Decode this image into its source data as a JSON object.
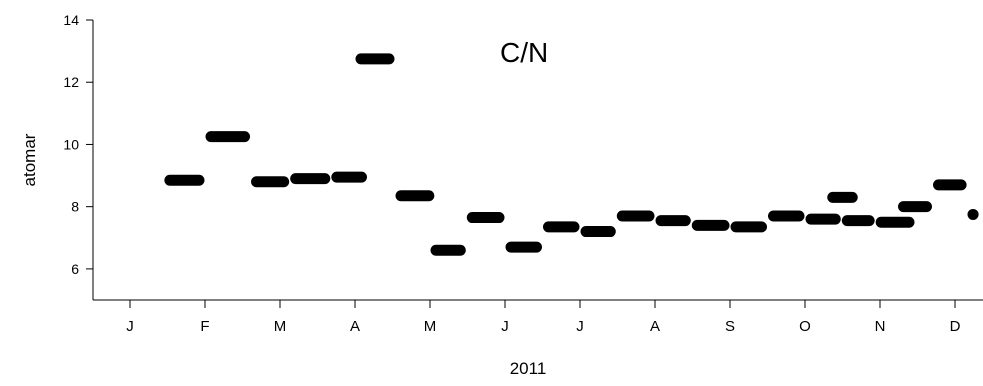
{
  "chart_data": {
    "type": "scatter",
    "title": "C/N",
    "xlabel": "2011",
    "ylabel": "atomar",
    "ylim": [
      5,
      14
    ],
    "yticks": [
      6,
      8,
      10,
      12,
      14
    ],
    "month_ticks": [
      "J",
      "F",
      "M",
      "A",
      "M",
      "J",
      "J",
      "A",
      "S",
      "O",
      "N",
      "D"
    ],
    "series": [
      {
        "marker": "horizontal-bar",
        "color": "#000000",
        "points": [
          {
            "x_start": "2011-01-15",
            "x_end": "2011-02-01",
            "y": 8.85
          },
          {
            "x_start": "2011-02-01",
            "x_end": "2011-02-18",
            "y": 10.25
          },
          {
            "x_start": "2011-02-18",
            "x_end": "2011-03-05",
            "y": 8.8
          },
          {
            "x_start": "2011-03-05",
            "x_end": "2011-03-22",
            "y": 8.9
          },
          {
            "x_start": "2011-03-22",
            "x_end": "2011-04-06",
            "y": 8.95
          },
          {
            "x_start": "2011-04-01",
            "x_end": "2011-04-17",
            "y": 12.75
          },
          {
            "x_start": "2011-04-17",
            "x_end": "2011-05-03",
            "y": 8.35
          },
          {
            "x_start": "2011-05-01",
            "x_end": "2011-05-16",
            "y": 6.6
          },
          {
            "x_start": "2011-05-16",
            "x_end": "2011-06-01",
            "y": 7.65
          },
          {
            "x_start": "2011-06-01",
            "x_end": "2011-06-16",
            "y": 6.7
          },
          {
            "x_start": "2011-06-16",
            "x_end": "2011-07-01",
            "y": 7.35
          },
          {
            "x_start": "2011-07-01",
            "x_end": "2011-07-16",
            "y": 7.2
          },
          {
            "x_start": "2011-07-16",
            "x_end": "2011-08-01",
            "y": 7.7
          },
          {
            "x_start": "2011-08-01",
            "x_end": "2011-08-16",
            "y": 7.55
          },
          {
            "x_start": "2011-08-16",
            "x_end": "2011-09-01",
            "y": 7.4
          },
          {
            "x_start": "2011-09-01",
            "x_end": "2011-09-16",
            "y": 7.35
          },
          {
            "x_start": "2011-09-16",
            "x_end": "2011-10-01",
            "y": 7.7
          },
          {
            "x_start": "2011-10-01",
            "x_end": "2011-10-16",
            "y": 7.6
          },
          {
            "x_start": "2011-10-10",
            "x_end": "2011-10-23",
            "y": 8.3
          },
          {
            "x_start": "2011-10-16",
            "x_end": "2011-10-30",
            "y": 7.55
          },
          {
            "x_start": "2011-10-30",
            "x_end": "2011-11-15",
            "y": 7.5
          },
          {
            "x_start": "2011-11-08",
            "x_end": "2011-11-22",
            "y": 8.0
          },
          {
            "x_start": "2011-11-22",
            "x_end": "2011-12-06",
            "y": 8.7
          },
          {
            "x_start": "2011-12-06",
            "x_end": "2011-12-25",
            "y": 7.75
          }
        ]
      }
    ]
  }
}
